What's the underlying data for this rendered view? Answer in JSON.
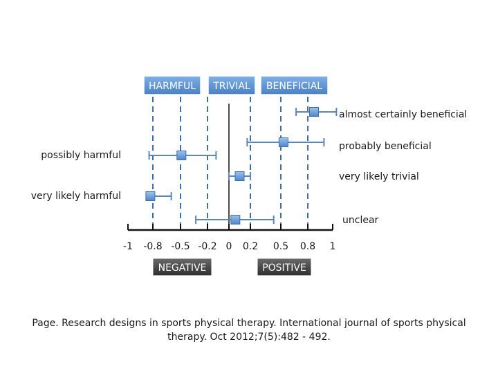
{
  "chart_data": {
    "type": "scatter",
    "subtype": "forest-plot",
    "xlim": [
      -1,
      1
    ],
    "x_ticks": [
      "-1",
      "-0.8",
      "-0.5",
      "-0.2",
      "0",
      "0.2",
      "0.5",
      "0.8",
      "1"
    ],
    "tick_values": [
      -1,
      -0.8,
      -0.5,
      -0.2,
      0,
      0.2,
      0.5,
      0.8,
      1
    ],
    "threshold_lines": [
      -0.8,
      -0.5,
      -0.2,
      0.2,
      0.5,
      0.8
    ],
    "zero_line": 0,
    "top_regions": [
      "HARMFUL",
      "TRIVIAL",
      "BENEFICIAL"
    ],
    "bottom_regions": [
      "NEGATIVE",
      "POSITIVE"
    ],
    "series": [
      {
        "label": "almost certainly beneficial",
        "side": "right",
        "estimate": 0.85,
        "ci": [
          0.67,
          1.03
        ]
      },
      {
        "label": "probably beneficial",
        "side": "right",
        "estimate": 0.53,
        "ci": [
          0.17,
          0.93
        ]
      },
      {
        "label": "possibly harmful",
        "side": "left",
        "estimate": -0.49,
        "ci": [
          -0.83,
          -0.12
        ]
      },
      {
        "label": "very likely trivial",
        "side": "right",
        "estimate": 0.1,
        "ci": [
          0,
          0.2
        ]
      },
      {
        "label": "very likely harmful",
        "side": "left",
        "estimate": -0.82,
        "ci": [
          -0.84,
          -0.6
        ]
      },
      {
        "label": "unclear",
        "side": "right",
        "estimate": 0.06,
        "ci": [
          -0.33,
          0.43
        ]
      }
    ],
    "colors": {
      "marker": "#6fa0d8",
      "marker_edge": "#3f6fa8",
      "ci_line": "#5b86bd",
      "dashed": "#3f6fa8",
      "region_top": "#5b8fd0",
      "region_bottom": "#4a4a4a"
    }
  },
  "caption": "Page. Research designs in sports physical therapy. International journal of sports physical therapy. Oct 2012;7(5):482 - 492."
}
